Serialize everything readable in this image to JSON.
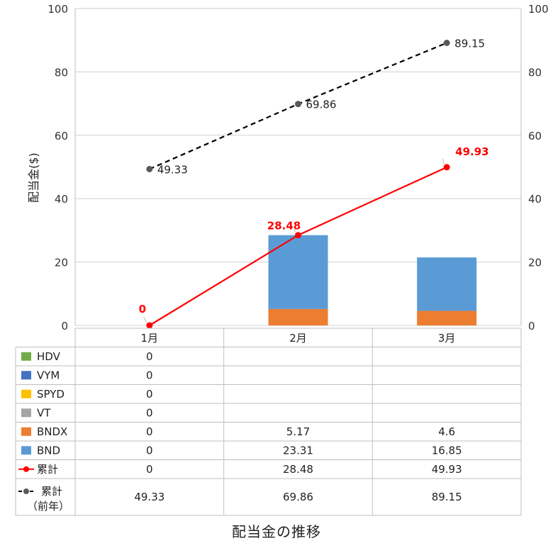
{
  "chart_data": {
    "type": "bar",
    "title": "配当金の推移",
    "ylabel": "配当金($)",
    "ylim": [
      0,
      100
    ],
    "yticks": [
      0,
      20,
      40,
      60,
      80,
      100
    ],
    "categories": [
      "1月",
      "2月",
      "3月"
    ],
    "bar_series": [
      {
        "name": "HDV",
        "color": "#70ad47",
        "values": [
          0,
          null,
          null
        ]
      },
      {
        "name": "VYM",
        "color": "#4472c4",
        "values": [
          0,
          null,
          null
        ]
      },
      {
        "name": "SPYD",
        "color": "#ffc000",
        "values": [
          0,
          null,
          null
        ]
      },
      {
        "name": "VT",
        "color": "#a5a5a5",
        "values": [
          0,
          null,
          null
        ]
      },
      {
        "name": "BNDX",
        "color": "#ed7d31",
        "values": [
          0,
          5.17,
          4.6
        ]
      },
      {
        "name": "BND",
        "color": "#5b9bd5",
        "values": [
          0,
          23.31,
          16.85
        ]
      }
    ],
    "line_series": [
      {
        "name": "累計",
        "color": "#ff0000",
        "style": "solid",
        "values": [
          0,
          28.48,
          49.93
        ]
      },
      {
        "name": "累計\n（前年）",
        "color": "#000000",
        "marker_color": "#595959",
        "style": "dashed",
        "values": [
          49.33,
          69.86,
          89.15
        ]
      }
    ],
    "grid": true,
    "secondary_axis": true,
    "data_table": true
  }
}
